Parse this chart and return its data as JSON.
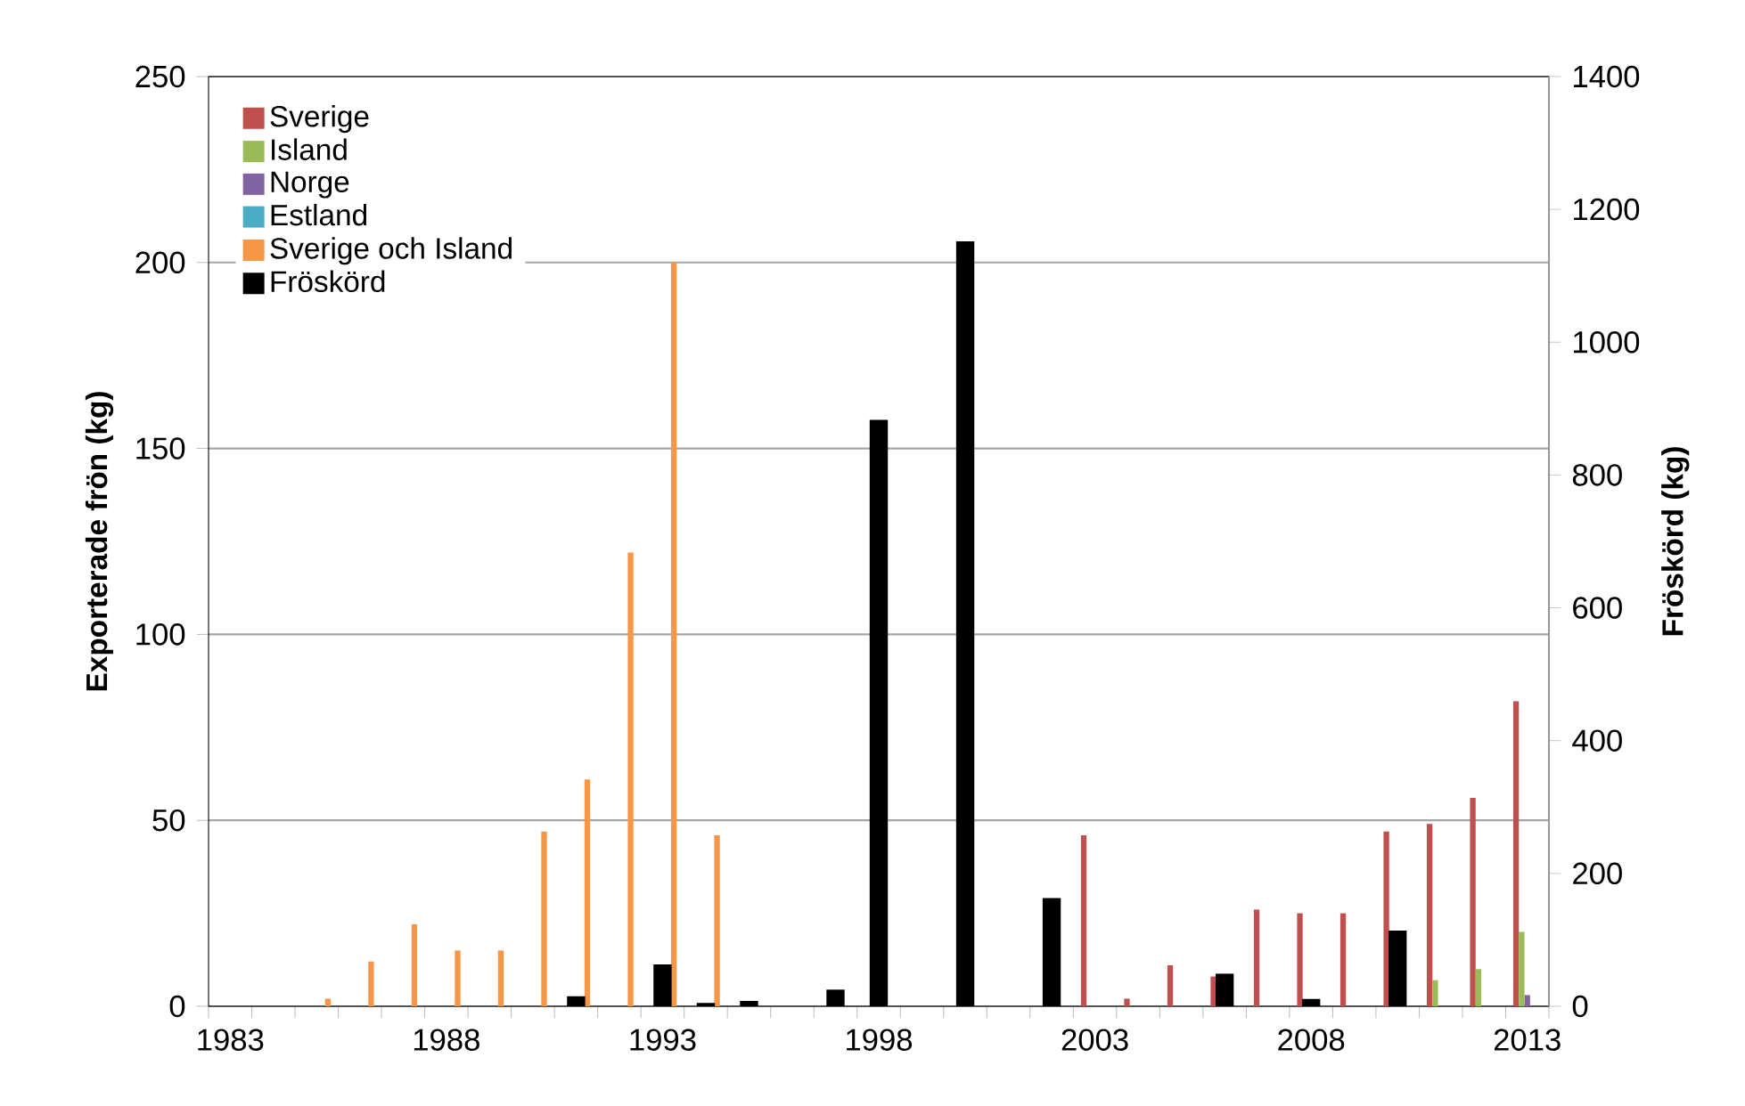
{
  "chart_data": {
    "type": "bar",
    "categories": [
      "1983",
      null,
      null,
      null,
      null,
      "1988",
      null,
      null,
      null,
      null,
      "1993",
      null,
      null,
      null,
      null,
      "1998",
      null,
      null,
      null,
      null,
      "2003",
      null,
      null,
      null,
      null,
      "2008",
      null,
      null,
      null,
      null,
      "2013"
    ],
    "series": [
      {
        "name": "Sverige",
        "color": "#c0504d",
        "values": [
          null,
          null,
          null,
          null,
          null,
          null,
          null,
          null,
          null,
          null,
          null,
          null,
          null,
          null,
          null,
          null,
          null,
          null,
          null,
          null,
          46,
          2,
          11,
          8,
          26,
          25,
          25,
          47,
          49,
          56,
          82
        ]
      },
      {
        "name": "Island",
        "color": "#9bbb59",
        "values": [
          null,
          null,
          null,
          null,
          null,
          null,
          null,
          null,
          null,
          null,
          null,
          null,
          null,
          null,
          null,
          null,
          null,
          null,
          null,
          null,
          null,
          null,
          null,
          null,
          null,
          null,
          null,
          null,
          7,
          10,
          20
        ]
      },
      {
        "name": "Norge",
        "color": "#8064a2",
        "values": [
          null,
          null,
          null,
          null,
          null,
          null,
          null,
          null,
          null,
          null,
          null,
          null,
          null,
          null,
          null,
          null,
          null,
          null,
          null,
          null,
          null,
          null,
          null,
          null,
          null,
          null,
          null,
          null,
          null,
          null,
          3
        ]
      },
      {
        "name": "Estland",
        "color": "#4bacc6",
        "values": [
          null,
          null,
          null,
          null,
          null,
          null,
          null,
          null,
          null,
          null,
          null,
          null,
          null,
          null,
          null,
          null,
          null,
          null,
          null,
          null,
          null,
          null,
          null,
          null,
          null,
          null,
          null,
          0.5,
          null,
          null,
          null
        ]
      },
      {
        "name": "Sverige och Island",
        "color": "#f79646",
        "values": [
          null,
          null,
          2,
          12,
          22,
          15,
          15,
          47,
          61,
          122,
          200,
          46,
          null,
          null,
          null,
          null,
          null,
          null,
          null,
          null,
          null,
          null,
          null,
          null,
          null,
          null,
          null,
          null,
          null,
          null,
          null
        ]
      },
      {
        "name": "Fröskörd",
        "color": "#000000",
        "axis": "y2",
        "values": [
          null,
          null,
          null,
          null,
          null,
          null,
          null,
          null,
          15,
          null,
          63,
          5,
          8,
          null,
          25,
          883,
          null,
          1152,
          null,
          163,
          null,
          null,
          null,
          49,
          null,
          11,
          null,
          114,
          null,
          null,
          null
        ]
      }
    ],
    "ylabel": "Exporterade frön (kg)",
    "y2label": "Fröskörd (kg)",
    "ylim": [
      0,
      250
    ],
    "yticks": [
      0,
      50,
      100,
      150,
      200,
      250
    ],
    "y2lim": [
      0,
      1400
    ],
    "y2ticks": [
      0,
      200,
      400,
      600,
      800,
      1000,
      1200,
      1400
    ],
    "grid": "y",
    "legend": "top left"
  }
}
